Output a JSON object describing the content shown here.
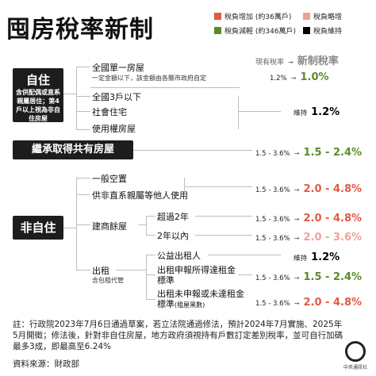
{
  "title": "囤房稅率新制",
  "legend": {
    "items": [
      {
        "label": "稅負增加 (約36萬戶)",
        "color": "#e05a45"
      },
      {
        "label": "稅負略增",
        "color": "#f0a096"
      },
      {
        "label": "稅負減輕 (約346萬戶)",
        "color": "#5a8a2a"
      },
      {
        "label": "稅負維持",
        "color": "#000000"
      }
    ]
  },
  "header": {
    "current": "現有稅率",
    "arrow": "→",
    "new": "新制稅率"
  },
  "categories": {
    "self_use": {
      "title": "自住",
      "desc": "含供配偶或直系親屬居住；第4戶以上視為非自住房屋"
    },
    "inherit": {
      "title": "繼承取得共有房屋"
    },
    "non_self": {
      "title": "非自住"
    }
  },
  "self_use_items": {
    "item1": {
      "label": "全國單一房屋",
      "sub": "一定金額以下，該金額由各縣市政府自定",
      "old": "1.2%",
      "new": "1.0%"
    },
    "item2": {
      "label": "全國3戶以下"
    },
    "item3": {
      "label": "社會住宅",
      "old": "維持",
      "new": "1.2%"
    },
    "item4": {
      "label": "使用權房屋"
    }
  },
  "inherit_rate": {
    "old": "1.5 - 3.6%",
    "new": "1.5 - 2.4%"
  },
  "non_self_items": {
    "vacant": {
      "label": "一般空置"
    },
    "family": {
      "label": "供非直系親屬等他人使用",
      "old": "1.5 - 3.6%",
      "new": "2.0 - 4.8%"
    },
    "builder": {
      "label": "建商餘屋"
    },
    "over2": {
      "label": "超過2年",
      "old": "1.5 - 3.6%",
      "new": "2.0 - 4.8%"
    },
    "within2": {
      "label": "2年以內",
      "old": "1.5 - 3.6%",
      "new": "2.0 - 3.6%"
    },
    "rent": {
      "label": "出租",
      "sub": "含包租代管"
    },
    "public_rent": {
      "label": "公益出租人",
      "old": "維持",
      "new": "1.2%"
    },
    "rent_declared": {
      "label": "出租申報所得達租金標準",
      "old": "1.5 - 3.6%",
      "new": "1.5 - 2.4%"
    },
    "rent_undeclared": {
      "label": "出租未申報或未達租金標準",
      "label_extra": "(租屋黑數)",
      "old": "1.5 - 3.6%",
      "new": "2.0 - 4.8%"
    }
  },
  "note": "註：行政院2023年7月6日通過草案，若立法院通過修法，預計2024年7月實施、2025年5月開徵；修法後，針對非自住房屋，地方政府須視持有戶數訂定差別稅率，並可自行加碼最多3成，即最高至6.24%",
  "source": "資料來源：財政部",
  "logo": {
    "text": "中央通訊社"
  },
  "colors": {
    "increase": "#e05a45",
    "slight": "#f0a096",
    "decrease": "#5a8a2a",
    "keep": "#000000"
  }
}
